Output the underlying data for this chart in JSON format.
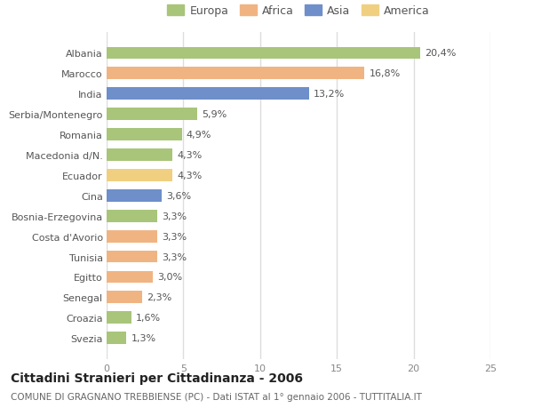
{
  "categories": [
    "Albania",
    "Marocco",
    "India",
    "Serbia/Montenegro",
    "Romania",
    "Macedonia d/N.",
    "Ecuador",
    "Cina",
    "Bosnia-Erzegovina",
    "Costa d'Avorio",
    "Tunisia",
    "Egitto",
    "Senegal",
    "Croazia",
    "Svezia"
  ],
  "values": [
    20.4,
    16.8,
    13.2,
    5.9,
    4.9,
    4.3,
    4.3,
    3.6,
    3.3,
    3.3,
    3.3,
    3.0,
    2.3,
    1.6,
    1.3
  ],
  "labels": [
    "20,4%",
    "16,8%",
    "13,2%",
    "5,9%",
    "4,9%",
    "4,3%",
    "4,3%",
    "3,6%",
    "3,3%",
    "3,3%",
    "3,3%",
    "3,0%",
    "2,3%",
    "1,6%",
    "1,3%"
  ],
  "colors": [
    "#a8c57a",
    "#f0b482",
    "#6e8fc9",
    "#a8c57a",
    "#a8c57a",
    "#a8c57a",
    "#f0d080",
    "#6e8fc9",
    "#a8c57a",
    "#f0b482",
    "#f0b482",
    "#f0b482",
    "#f0b482",
    "#a8c57a",
    "#a8c57a"
  ],
  "continent_colors": {
    "Europa": "#a8c57a",
    "Africa": "#f0b482",
    "Asia": "#6e8fc9",
    "America": "#f0d080"
  },
  "legend_labels": [
    "Europa",
    "Africa",
    "Asia",
    "America"
  ],
  "xlim": [
    0,
    25
  ],
  "xticks": [
    0,
    5,
    10,
    15,
    20,
    25
  ],
  "title": "Cittadini Stranieri per Cittadinanza - 2006",
  "subtitle": "COMUNE DI GRAGNANO TREBBIENSE (PC) - Dati ISTAT al 1° gennaio 2006 - TUTTITALIA.IT",
  "background_color": "#ffffff",
  "plot_bg_color": "#ffffff",
  "grid_color": "#e0e0e0",
  "label_fontsize": 8,
  "tick_fontsize": 8,
  "title_fontsize": 10,
  "subtitle_fontsize": 7.5,
  "bar_height": 0.6
}
